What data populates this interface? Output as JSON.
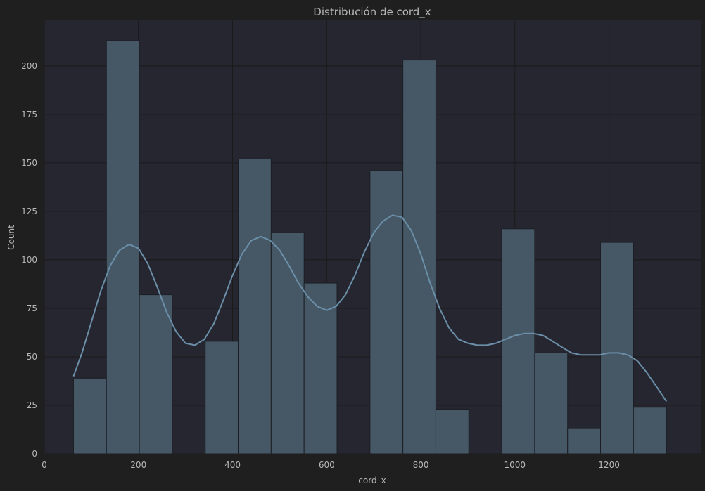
{
  "colors": {
    "figure_bg": "#1f1f1f",
    "axes_bg": "#262630",
    "grid": "#1a1a1a",
    "bar_fill": "#465866",
    "bar_edge": "#1c1e24",
    "kde_line": "#6b8fa8",
    "text": "#b8b8b8"
  },
  "chart_data": {
    "type": "bar",
    "title": "Distribución de cord_x",
    "xlabel": "cord_x",
    "ylabel": "Count",
    "xlim": [
      0,
      1395
    ],
    "ylim": [
      0,
      223.5
    ],
    "xticks": [
      0,
      200,
      400,
      600,
      800,
      1000,
      1200
    ],
    "yticks": [
      0,
      25,
      50,
      75,
      100,
      125,
      150,
      175,
      200
    ],
    "grid": true,
    "bin_edges": [
      62,
      132,
      202,
      272,
      342,
      412,
      482,
      552,
      622,
      692,
      762,
      832,
      902,
      972,
      1042,
      1112,
      1182,
      1252,
      1322
    ],
    "values": [
      39,
      213,
      82,
      0,
      58,
      152,
      114,
      88,
      0,
      146,
      203,
      23,
      0,
      116,
      52,
      13,
      109,
      24
    ],
    "kde": {
      "x": [
        62,
        80,
        100,
        120,
        140,
        160,
        180,
        200,
        220,
        240,
        260,
        280,
        300,
        320,
        340,
        360,
        380,
        400,
        420,
        440,
        460,
        480,
        500,
        520,
        540,
        560,
        580,
        600,
        620,
        640,
        660,
        680,
        700,
        720,
        740,
        760,
        780,
        800,
        820,
        840,
        860,
        880,
        900,
        920,
        940,
        960,
        980,
        1000,
        1020,
        1040,
        1060,
        1080,
        1100,
        1120,
        1140,
        1160,
        1180,
        1200,
        1220,
        1240,
        1260,
        1280,
        1300,
        1322
      ],
      "y": [
        40,
        52,
        68,
        84,
        97,
        105,
        108,
        106,
        98,
        86,
        73,
        63,
        57,
        56,
        59,
        67,
        79,
        92,
        103,
        110,
        112,
        110,
        105,
        97,
        88,
        81,
        76,
        74,
        76,
        82,
        92,
        104,
        114,
        120,
        123,
        122,
        115,
        103,
        88,
        75,
        65,
        59,
        57,
        56,
        56,
        57,
        59,
        61,
        62,
        62,
        61,
        58,
        55,
        52,
        51,
        51,
        51,
        52,
        52,
        51,
        48,
        42,
        35,
        27
      ]
    }
  }
}
